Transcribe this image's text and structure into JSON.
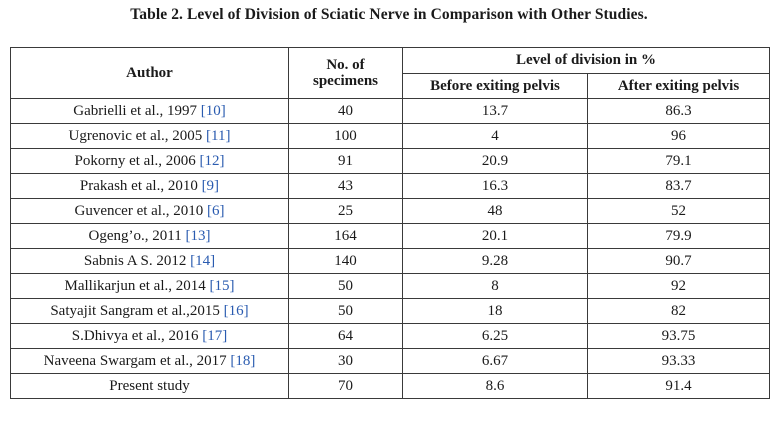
{
  "caption": "Table 2. Level of Division of Sciatic Nerve in Comparison with Other Studies.",
  "headers": {
    "author": "Author",
    "specimens_line1": "No. of",
    "specimens_line2": "specimens",
    "level_group": "Level of division in %",
    "before": "Before exiting pelvis",
    "after": "After exiting pelvis"
  },
  "rows": [
    {
      "author": "Gabrielli et al., 1997 ",
      "ref": "[10]",
      "specimens": "40",
      "before": "13.7",
      "after": "86.3"
    },
    {
      "author": "Ugrenovic et al., 2005 ",
      "ref": "[11]",
      "specimens": "100",
      "before": "4",
      "after": "96"
    },
    {
      "author": "Pokorny et al., 2006 ",
      "ref": "[12]",
      "specimens": "91",
      "before": "20.9",
      "after": "79.1"
    },
    {
      "author": "Prakash et al., 2010 ",
      "ref": "[9]",
      "specimens": "43",
      "before": "16.3",
      "after": "83.7"
    },
    {
      "author": "Guvencer et al., 2010 ",
      "ref": "[6]",
      "specimens": "25",
      "before": "48",
      "after": "52"
    },
    {
      "author": "Ogeng’o., 2011 ",
      "ref": "[13]",
      "specimens": "164",
      "before": "20.1",
      "after": "79.9"
    },
    {
      "author": "Sabnis A S. 2012 ",
      "ref": "[14]",
      "specimens": "140",
      "before": "9.28",
      "after": "90.7"
    },
    {
      "author": "Mallikarjun et al., 2014 ",
      "ref": "[15]",
      "specimens": "50",
      "before": "8",
      "after": "92"
    },
    {
      "author": "Satyajit Sangram et al.,2015 ",
      "ref": "[16]",
      "specimens": "50",
      "before": "18",
      "after": "82"
    },
    {
      "author": "S.Dhivya et al., 2016 ",
      "ref": "[17]",
      "specimens": "64",
      "before": "6.25",
      "after": "93.75"
    },
    {
      "author": "Naveena Swargam et al., 2017 ",
      "ref": "[18]",
      "specimens": "30",
      "before": "6.67",
      "after": "93.33"
    },
    {
      "author": "Present study",
      "ref": "",
      "specimens": "70",
      "before": "8.6",
      "after": "91.4"
    }
  ],
  "colors": {
    "text": "#1a1a1a",
    "reference_link": "#2a5bb0",
    "border": "#3a3a3a"
  }
}
